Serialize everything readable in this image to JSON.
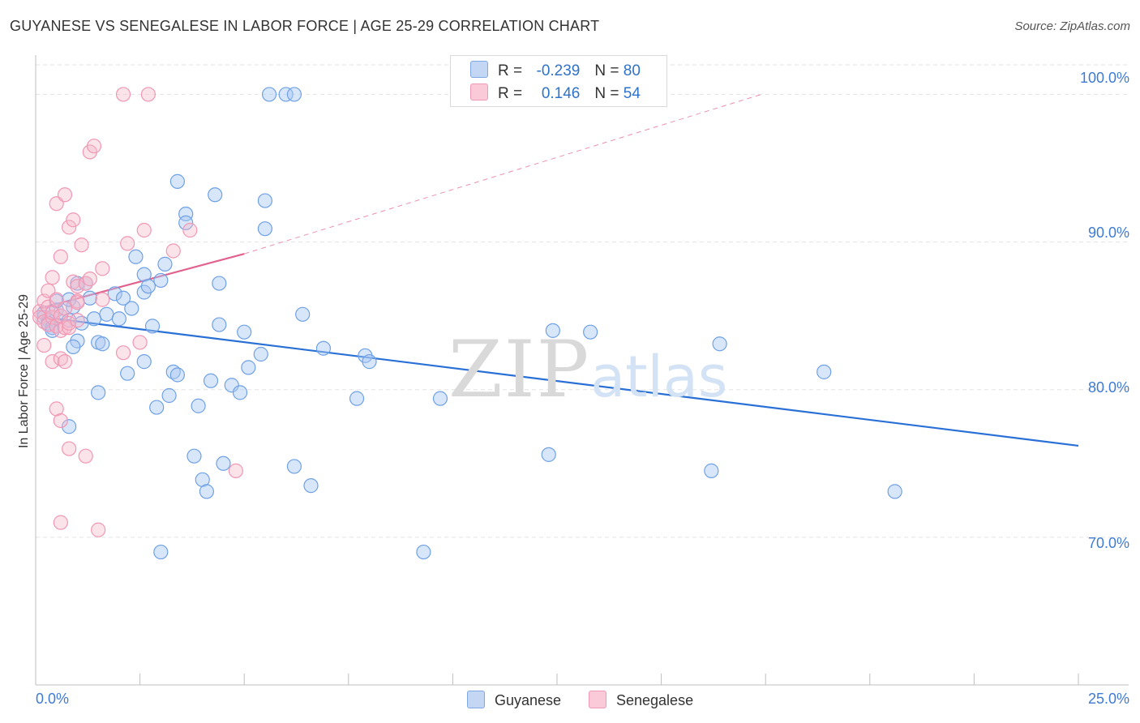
{
  "title": "GUYANESE VS SENEGALESE IN LABOR FORCE | AGE 25-29 CORRELATION CHART",
  "source": "Source: ZipAtlas.com",
  "watermark": {
    "zip": "ZIP",
    "atlas": "atlas"
  },
  "legend": {
    "rows": [
      {
        "name": "Guyanese",
        "r_label": "R = ",
        "r_value": "-0.239",
        "n_label": "N = ",
        "n_value": "80",
        "color": "#a9c8f2"
      },
      {
        "name": "Senegalese",
        "r_label": "R = ",
        "r_value": "0.146",
        "n_label": "N = ",
        "n_value": "54",
        "color": "#f6b9cb"
      }
    ]
  },
  "chart_data": {
    "type": "scatter",
    "title": "GUYANESE VS SENEGALESE IN LABOR FORCE | AGE 25-29 CORRELATION CHART",
    "xlabel": "",
    "ylabel": "In Labor Force | Age 25-29",
    "xlim": [
      0,
      25
    ],
    "ylim": [
      60,
      102
    ],
    "x_tick_labels": [
      "0.0%",
      "25.0%"
    ],
    "y_ticks": [
      70,
      80,
      90,
      100
    ],
    "y_tick_labels": [
      "70.0%",
      "80.0%",
      "90.0%",
      "100.0%"
    ],
    "grid": true,
    "legend_position": "bottom-center",
    "series": [
      {
        "name": "Guyanese",
        "color": "#6fa1e6",
        "trend": {
          "x": [
            0.2,
            25
          ],
          "y": [
            84.9,
            76.2
          ],
          "color": "#2970d6"
        },
        "points": [
          [
            0.2,
            85.2
          ],
          [
            0.2,
            84.9
          ],
          [
            0.3,
            84.7
          ],
          [
            0.3,
            84.5
          ],
          [
            0.4,
            84.2
          ],
          [
            0.5,
            85.4
          ],
          [
            0.5,
            86.0
          ],
          [
            0.6,
            85.0
          ],
          [
            0.8,
            84.7
          ],
          [
            0.9,
            85.6
          ],
          [
            0.8,
            86.1
          ],
          [
            1.0,
            83.3
          ],
          [
            1.0,
            87.2
          ],
          [
            0.9,
            82.9
          ],
          [
            1.1,
            84.5
          ],
          [
            1.2,
            87.2
          ],
          [
            1.3,
            86.2
          ],
          [
            1.4,
            84.8
          ],
          [
            1.5,
            83.2
          ],
          [
            1.5,
            79.8
          ],
          [
            1.6,
            83.1
          ],
          [
            1.7,
            85.1
          ],
          [
            1.9,
            86.5
          ],
          [
            2.0,
            84.8
          ],
          [
            2.1,
            86.2
          ],
          [
            2.2,
            81.1
          ],
          [
            2.3,
            85.5
          ],
          [
            2.4,
            89.0
          ],
          [
            2.6,
            87.8
          ],
          [
            2.6,
            86.6
          ],
          [
            2.7,
            87.0
          ],
          [
            2.8,
            84.3
          ],
          [
            2.9,
            78.8
          ],
          [
            3.0,
            87.4
          ],
          [
            3.1,
            88.5
          ],
          [
            3.2,
            79.6
          ],
          [
            3.3,
            81.2
          ],
          [
            3.4,
            94.1
          ],
          [
            3.6,
            91.9
          ],
          [
            3.6,
            91.3
          ],
          [
            3.8,
            75.5
          ],
          [
            3.9,
            78.9
          ],
          [
            4.0,
            73.9
          ],
          [
            4.1,
            73.1
          ],
          [
            4.2,
            80.6
          ],
          [
            4.3,
            93.2
          ],
          [
            4.4,
            87.2
          ],
          [
            4.4,
            84.4
          ],
          [
            4.5,
            75.0
          ],
          [
            4.7,
            80.3
          ],
          [
            4.9,
            79.8
          ],
          [
            5.0,
            83.9
          ],
          [
            5.1,
            81.5
          ],
          [
            5.4,
            82.4
          ],
          [
            5.5,
            92.8
          ],
          [
            5.5,
            90.9
          ],
          [
            5.6,
            100.0
          ],
          [
            6.0,
            100.0
          ],
          [
            6.2,
            100.0
          ],
          [
            6.4,
            85.1
          ],
          [
            6.2,
            74.8
          ],
          [
            6.6,
            73.5
          ],
          [
            6.9,
            82.8
          ],
          [
            7.7,
            79.4
          ],
          [
            7.9,
            82.3
          ],
          [
            8.0,
            81.9
          ],
          [
            9.7,
            79.4
          ],
          [
            9.3,
            69.0
          ],
          [
            12.4,
            84.0
          ],
          [
            13.3,
            83.9
          ],
          [
            12.3,
            75.6
          ],
          [
            16.4,
            83.1
          ],
          [
            16.2,
            74.5
          ],
          [
            18.9,
            81.2
          ],
          [
            20.6,
            73.1
          ],
          [
            3.0,
            69.0
          ],
          [
            0.8,
            77.5
          ],
          [
            0.4,
            84.0
          ],
          [
            2.6,
            81.9
          ],
          [
            3.4,
            81.0
          ]
        ]
      },
      {
        "name": "Senegalese",
        "color": "#f197b3",
        "trend": {
          "x": [
            0.1,
            5.0
          ],
          "y": [
            85.5,
            89.2
          ],
          "color": "#e2628f",
          "extension": {
            "x": [
              5.0,
              17.4
            ],
            "y": [
              89.2,
              100.0
            ]
          }
        },
        "points": [
          [
            0.1,
            85.3
          ],
          [
            0.1,
            84.9
          ],
          [
            0.2,
            84.6
          ],
          [
            0.2,
            83.0
          ],
          [
            0.2,
            86.0
          ],
          [
            0.3,
            84.4
          ],
          [
            0.3,
            85.6
          ],
          [
            0.3,
            86.7
          ],
          [
            0.4,
            87.6
          ],
          [
            0.4,
            84.9
          ],
          [
            0.4,
            81.9
          ],
          [
            0.4,
            85.2
          ],
          [
            0.5,
            78.7
          ],
          [
            0.5,
            86.1
          ],
          [
            0.5,
            84.3
          ],
          [
            0.5,
            92.6
          ],
          [
            0.6,
            89.0
          ],
          [
            0.6,
            77.9
          ],
          [
            0.6,
            85.0
          ],
          [
            0.6,
            84.0
          ],
          [
            0.6,
            82.1
          ],
          [
            0.6,
            71.0
          ],
          [
            0.7,
            81.9
          ],
          [
            0.7,
            85.5
          ],
          [
            0.7,
            84.2
          ],
          [
            0.7,
            93.2
          ],
          [
            0.8,
            91.0
          ],
          [
            0.8,
            76.0
          ],
          [
            0.8,
            84.2
          ],
          [
            0.8,
            84.5
          ],
          [
            0.9,
            91.5
          ],
          [
            0.9,
            87.3
          ],
          [
            1.0,
            86.0
          ],
          [
            1.0,
            85.9
          ],
          [
            1.0,
            87.0
          ],
          [
            1.0,
            84.7
          ],
          [
            1.1,
            89.8
          ],
          [
            1.2,
            75.5
          ],
          [
            1.2,
            87.2
          ],
          [
            1.3,
            96.1
          ],
          [
            1.3,
            87.5
          ],
          [
            1.4,
            96.5
          ],
          [
            1.5,
            70.5
          ],
          [
            1.6,
            88.2
          ],
          [
            1.6,
            86.1
          ],
          [
            2.1,
            100.0
          ],
          [
            2.1,
            82.5
          ],
          [
            2.2,
            89.9
          ],
          [
            2.5,
            83.2
          ],
          [
            2.6,
            90.8
          ],
          [
            2.7,
            100.0
          ],
          [
            3.3,
            89.4
          ],
          [
            3.7,
            90.8
          ],
          [
            4.8,
            74.5
          ]
        ]
      }
    ]
  }
}
